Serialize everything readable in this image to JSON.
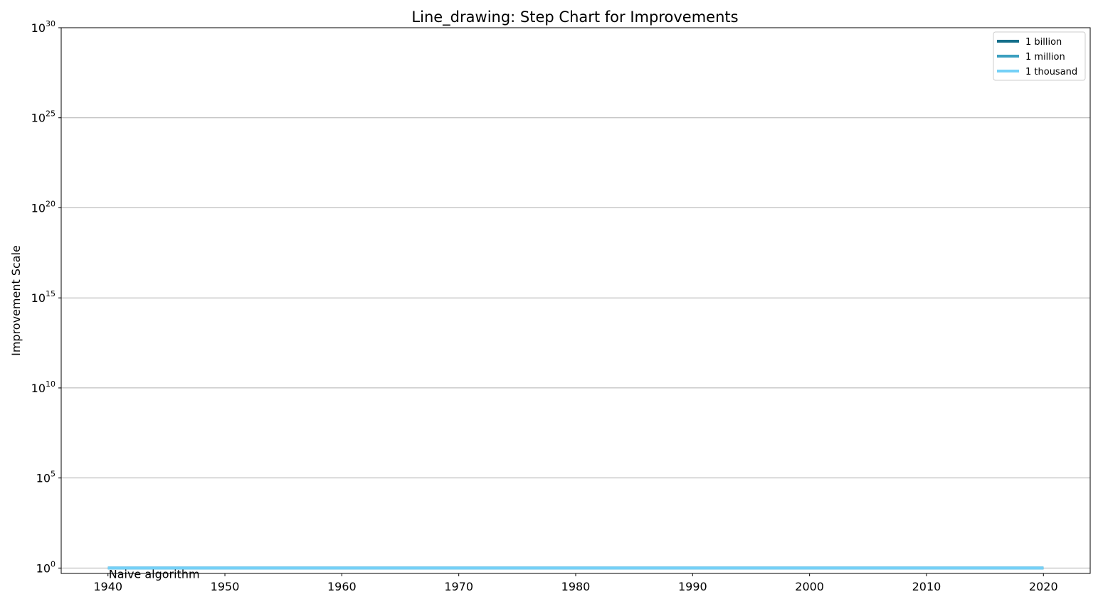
{
  "chart_data": {
    "type": "line",
    "step": true,
    "title": "Line_drawing: Step Chart for Improvements",
    "xlabel": "",
    "ylabel": "Improvement Scale",
    "xlim": [
      1936,
      2024
    ],
    "ylim_exponent": [
      -0.3,
      30
    ],
    "yscale": "log",
    "grid": "y",
    "legend_position": "top-right",
    "x_ticks": [
      1940,
      1950,
      1960,
      1970,
      1980,
      1990,
      2000,
      2010,
      2020
    ],
    "y_ticks": [
      {
        "base": "10",
        "exp": "0",
        "value": 0
      },
      {
        "base": "10",
        "exp": "5",
        "value": 5
      },
      {
        "base": "10",
        "exp": "10",
        "value": 10
      },
      {
        "base": "10",
        "exp": "15",
        "value": 15
      },
      {
        "base": "10",
        "exp": "20",
        "value": 20
      },
      {
        "base": "10",
        "exp": "25",
        "value": 25
      },
      {
        "base": "10",
        "exp": "30",
        "value": 30
      }
    ],
    "series": [
      {
        "name": "1 billion",
        "color": "#136e8a",
        "x": [
          1940,
          2020
        ],
        "y": [
          1,
          1
        ]
      },
      {
        "name": "1 million",
        "color": "#3a9fbf",
        "x": [
          1940,
          2020
        ],
        "y": [
          1,
          1
        ]
      },
      {
        "name": "1 thousand",
        "color": "#74d0f7",
        "x": [
          1940,
          2020
        ],
        "y": [
          1,
          1
        ]
      }
    ],
    "annotations": [
      {
        "text": "Naive algorithm",
        "x": 1940,
        "y": 1
      }
    ]
  }
}
